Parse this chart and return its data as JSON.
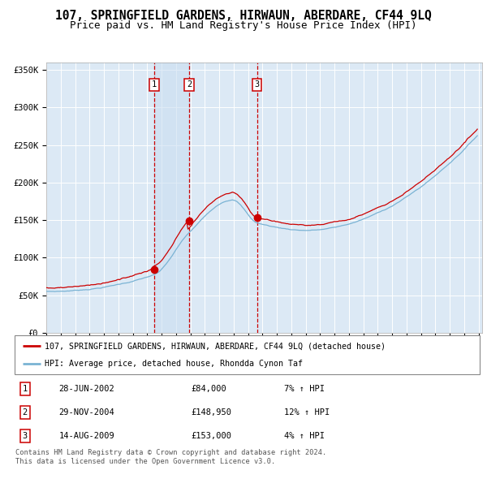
{
  "title": "107, SPRINGFIELD GARDENS, HIRWAUN, ABERDARE, CF44 9LQ",
  "subtitle": "Price paid vs. HM Land Registry's House Price Index (HPI)",
  "line_color_red": "#cc0000",
  "line_color_blue": "#7ab3d4",
  "purchases": [
    {
      "date": "2002-06-28",
      "price": 84000,
      "label": "1"
    },
    {
      "date": "2004-11-29",
      "price": 148950,
      "label": "2"
    },
    {
      "date": "2009-08-14",
      "price": 153000,
      "label": "3"
    }
  ],
  "legend_line1": "107, SPRINGFIELD GARDENS, HIRWAUN, ABERDARE, CF44 9LQ (detached house)",
  "legend_line2": "HPI: Average price, detached house, Rhondda Cynon Taf",
  "table_rows": [
    {
      "num": "1",
      "date": "28-JUN-2002",
      "price": "£84,000",
      "hpi": "7% ↑ HPI"
    },
    {
      "num": "2",
      "date": "29-NOV-2004",
      "price": "£148,950",
      "hpi": "12% ↑ HPI"
    },
    {
      "num": "3",
      "date": "14-AUG-2009",
      "price": "£153,000",
      "hpi": "4% ↑ HPI"
    }
  ],
  "footer": "Contains HM Land Registry data © Crown copyright and database right 2024.\nThis data is licensed under the Open Government Licence v3.0.",
  "ylim": [
    0,
    360000
  ],
  "yticks": [
    0,
    50000,
    100000,
    150000,
    200000,
    250000,
    300000,
    350000
  ],
  "ytick_labels": [
    "£0",
    "£50K",
    "£100K",
    "£150K",
    "£200K",
    "£250K",
    "£300K",
    "£350K"
  ]
}
